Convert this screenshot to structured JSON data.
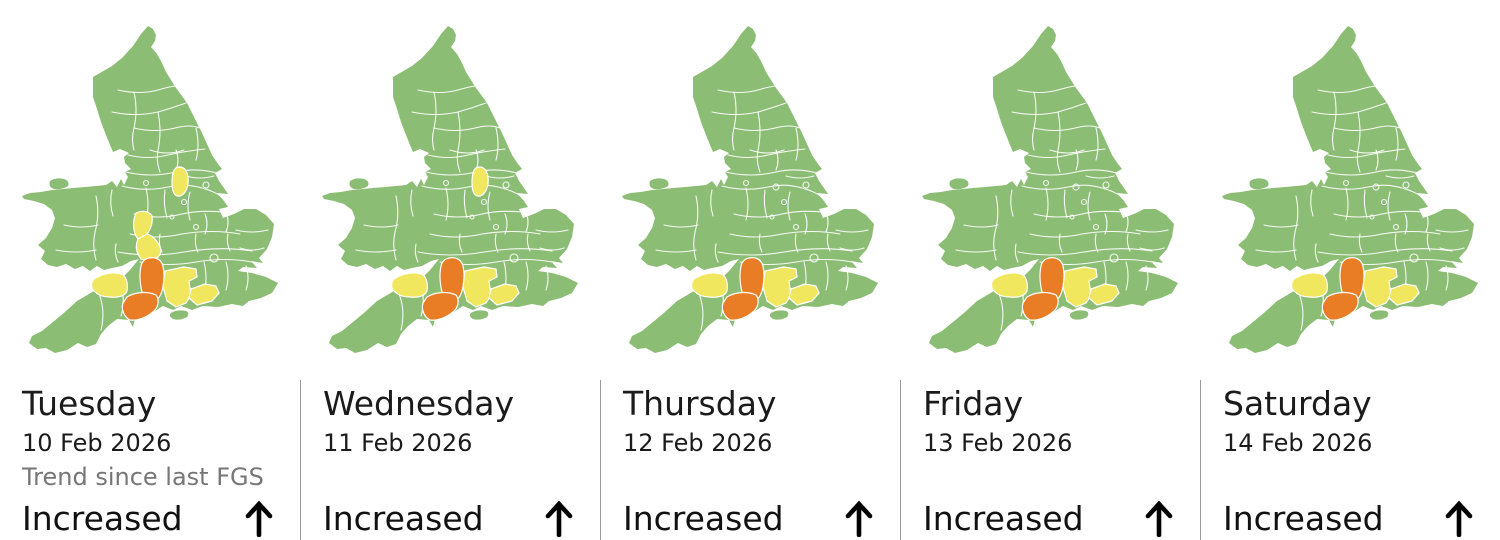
{
  "title_hidden": "",
  "colors": {
    "green": "#8CBD74",
    "yellow": "#F1E75F",
    "orange": "#E87D26",
    "boundary": "#FFFFFF",
    "divider": "#9A9A9A",
    "text": "#1B1B1B",
    "muted": "#767676"
  },
  "chart_data": {
    "type": "choropleth-map-series",
    "map_area": "England and Wales county map",
    "legend_levels": [
      "green",
      "yellow",
      "orange"
    ],
    "days": [
      {
        "day": "Tuesday",
        "date": "10 Feb 2026",
        "trend": "Increased",
        "trend_direction": "up",
        "highlighted_regions": [
          {
            "region": "nottinghamshire",
            "risk": "yellow"
          },
          {
            "region": "worcestershire",
            "risk": "yellow"
          },
          {
            "region": "gloucestershire",
            "risk": "yellow"
          },
          {
            "region": "wiltshire",
            "risk": "orange"
          },
          {
            "region": "dorset",
            "risk": "orange"
          },
          {
            "region": "somerset",
            "risk": "yellow"
          },
          {
            "region": "hampshire",
            "risk": "yellow"
          },
          {
            "region": "sussex",
            "risk": "yellow"
          }
        ]
      },
      {
        "day": "Wednesday",
        "date": "11 Feb 2026",
        "trend": "Increased",
        "trend_direction": "up",
        "highlighted_regions": [
          {
            "region": "nottinghamshire",
            "risk": "yellow"
          },
          {
            "region": "wiltshire",
            "risk": "orange"
          },
          {
            "region": "dorset",
            "risk": "orange"
          },
          {
            "region": "somerset",
            "risk": "yellow"
          },
          {
            "region": "hampshire",
            "risk": "yellow"
          },
          {
            "region": "sussex",
            "risk": "yellow"
          }
        ]
      },
      {
        "day": "Thursday",
        "date": "12 Feb 2026",
        "trend": "Increased",
        "trend_direction": "up",
        "highlighted_regions": [
          {
            "region": "wiltshire",
            "risk": "orange"
          },
          {
            "region": "dorset",
            "risk": "orange"
          },
          {
            "region": "somerset",
            "risk": "yellow"
          },
          {
            "region": "hampshire",
            "risk": "yellow"
          },
          {
            "region": "sussex",
            "risk": "yellow"
          }
        ]
      },
      {
        "day": "Friday",
        "date": "13 Feb 2026",
        "trend": "Increased",
        "trend_direction": "up",
        "highlighted_regions": [
          {
            "region": "wiltshire",
            "risk": "orange"
          },
          {
            "region": "dorset",
            "risk": "orange"
          },
          {
            "region": "somerset",
            "risk": "yellow"
          },
          {
            "region": "hampshire",
            "risk": "yellow"
          },
          {
            "region": "sussex",
            "risk": "yellow"
          }
        ]
      },
      {
        "day": "Saturday",
        "date": "14 Feb 2026",
        "trend": "Increased",
        "trend_direction": "up",
        "highlighted_regions": [
          {
            "region": "wiltshire",
            "risk": "orange"
          },
          {
            "region": "dorset",
            "risk": "orange"
          },
          {
            "region": "somerset",
            "risk": "yellow"
          },
          {
            "region": "hampshire",
            "risk": "yellow"
          },
          {
            "region": "sussex",
            "risk": "yellow"
          }
        ]
      }
    ]
  },
  "panels": [
    {
      "day": "Tuesday",
      "date": "10 Feb 2026",
      "trend_caption": "Trend since last FGS",
      "trend": "Increased",
      "trend_direction": "up"
    },
    {
      "day": "Wednesday",
      "date": "11 Feb 2026",
      "trend": "Increased",
      "trend_direction": "up"
    },
    {
      "day": "Thursday",
      "date": "12 Feb 2026",
      "trend": "Increased",
      "trend_direction": "up"
    },
    {
      "day": "Friday",
      "date": "13 Feb 2026",
      "trend": "Increased",
      "trend_direction": "up"
    },
    {
      "day": "Saturday",
      "date": "14 Feb 2026",
      "trend": "Increased",
      "trend_direction": "up"
    }
  ]
}
